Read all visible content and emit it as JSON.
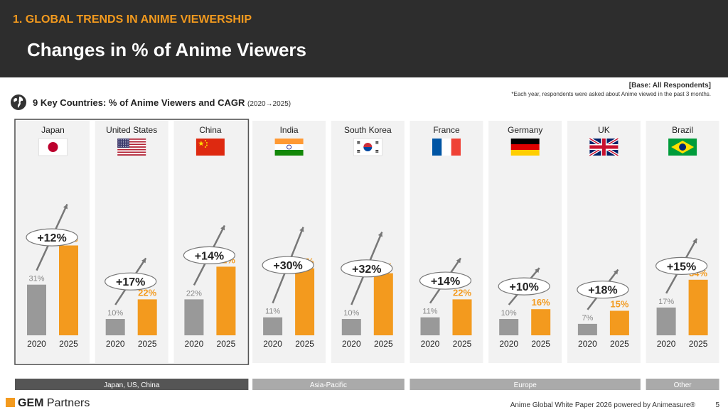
{
  "header": {
    "section": "1. GLOBAL TRENDS IN ANIME VIEWERSHIP",
    "title": "Changes in % of Anime Viewers"
  },
  "notes": {
    "base": "[Base: All Respondents]",
    "footnote": "*Each year, respondents were asked about Anime viewed in the past 3 months."
  },
  "chart_data": {
    "type": "bar",
    "title": "9 Key Countries: % of Anime Viewers and CAGR",
    "subtitle": "(2020→2025)",
    "categories": [
      "2020",
      "2025"
    ],
    "ylim": [
      0,
      60
    ],
    "colors": {
      "2020": "#999999",
      "2025": "#f39a1e"
    },
    "countries": [
      {
        "name": "Japan",
        "flag": "jp",
        "v2020": 31,
        "v2025": 55,
        "l2020": "31%",
        "l2025": "55%",
        "cagr": "+12%"
      },
      {
        "name": "United States",
        "flag": "us",
        "v2020": 10,
        "v2025": 22,
        "l2020": "10%",
        "l2025": "22%",
        "cagr": "+17%"
      },
      {
        "name": "China",
        "flag": "cn",
        "v2020": 22,
        "v2025": 42,
        "l2020": "22%",
        "l2025": "42%",
        "cagr": "+14%"
      },
      {
        "name": "India",
        "flag": "in",
        "v2020": 11,
        "v2025": 41,
        "l2020": "11%",
        "l2025": "41%",
        "cagr": "+30%"
      },
      {
        "name": "South Korea",
        "flag": "kr",
        "v2020": 10,
        "v2025": 38,
        "l2020": "10%",
        "l2025": "38%",
        "cagr": "+32%"
      },
      {
        "name": "France",
        "flag": "fr",
        "v2020": 11,
        "v2025": 22,
        "l2020": "11%",
        "l2025": "22%",
        "cagr": "+14%"
      },
      {
        "name": "Germany",
        "flag": "de",
        "v2020": 10,
        "v2025": 16,
        "l2020": "10%",
        "l2025": "16%",
        "cagr": "+10%"
      },
      {
        "name": "UK",
        "flag": "gb",
        "v2020": 7,
        "v2025": 15,
        "l2020": "7%",
        "l2025": "15%",
        "cagr": "+18%"
      },
      {
        "name": "Brazil",
        "flag": "br",
        "v2020": 17,
        "v2025": 34,
        "l2020": "17%",
        "l2025": "34%",
        "cagr": "+15%"
      }
    ],
    "regions": [
      {
        "label": "Japan, US, China",
        "highlight": true
      },
      {
        "label": "Asia-Pacific",
        "highlight": false
      },
      {
        "label": "Europe",
        "highlight": false
      },
      {
        "label": "Other",
        "highlight": false
      }
    ]
  },
  "footer": {
    "brand_bold": "GEM",
    "brand_rest": " Partners",
    "credit": "Anime Global White Paper 2026 powered by Animeasure®",
    "page": "5"
  }
}
